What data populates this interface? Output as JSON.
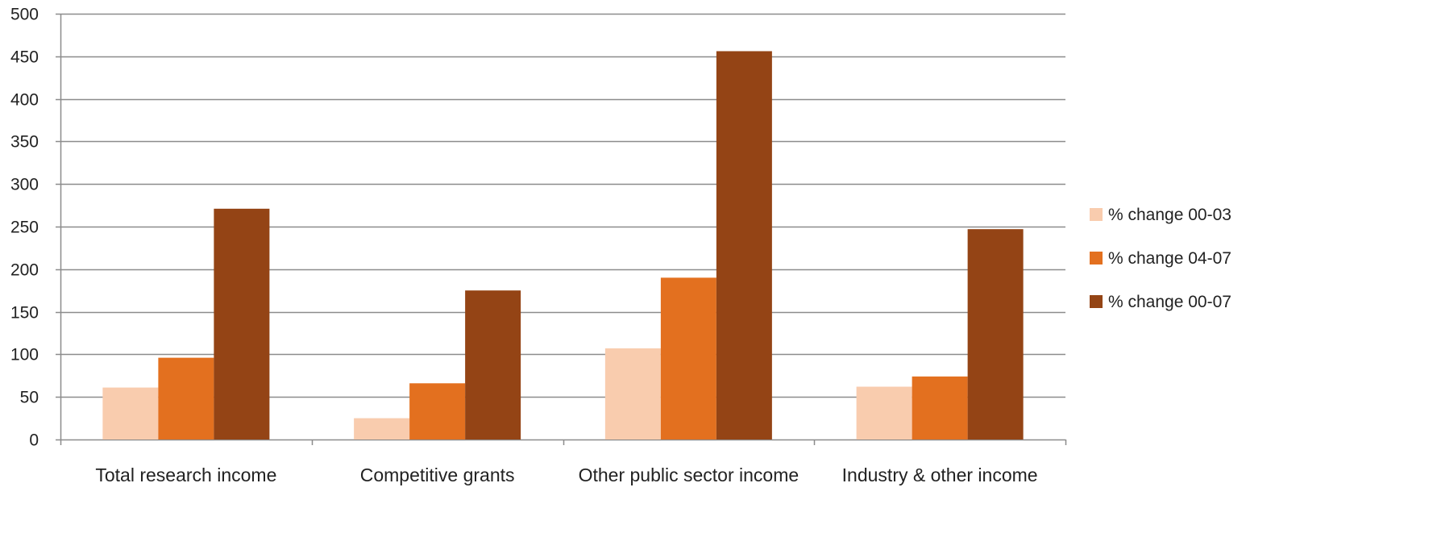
{
  "chart_data": {
    "type": "bar",
    "categories": [
      "Total research income",
      "Competitive grants",
      "Other public sector income",
      "Industry & other income"
    ],
    "series": [
      {
        "name": "% change 00-03",
        "color": "#f9ccae",
        "values": [
          61,
          25,
          107,
          62
        ]
      },
      {
        "name": "% change 04-07",
        "color": "#e3701f",
        "values": [
          96,
          66,
          190,
          74
        ]
      },
      {
        "name": "% change 00-07",
        "color": "#944415",
        "values": [
          271,
          175,
          456,
          247
        ]
      }
    ],
    "title": "",
    "xlabel": "",
    "ylabel": "",
    "ylim": [
      0,
      500
    ],
    "yticks": [
      "0",
      "50",
      "100",
      "150",
      "200",
      "250",
      "300",
      "350",
      "400",
      "450",
      "500"
    ],
    "grid": true,
    "legend_position": "right",
    "grid_color": "#8c8c8c"
  }
}
